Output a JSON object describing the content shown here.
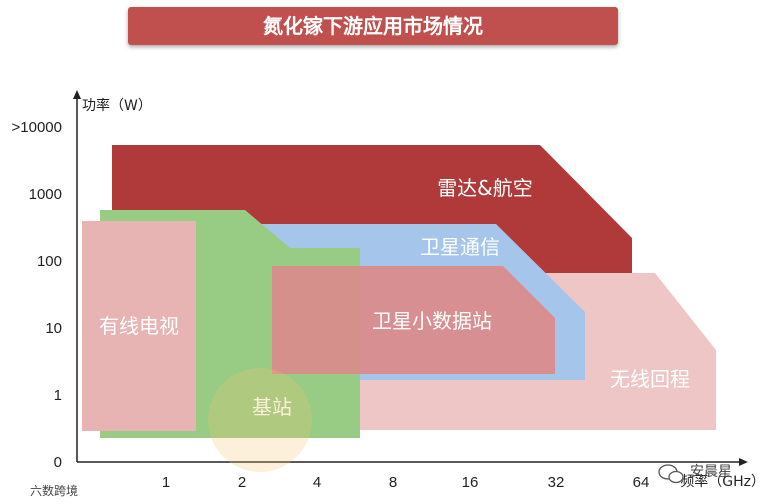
{
  "title": "氮化镓下游应用市场情况",
  "y_axis": {
    "label": "功率（W）",
    "ticks": [
      ">10000",
      "1000",
      "100",
      "10",
      "1",
      "0"
    ]
  },
  "x_axis": {
    "label": "频率（GHz）",
    "ticks": [
      "1",
      "2",
      "4",
      "8",
      "16",
      "32",
      "64"
    ]
  },
  "regions": {
    "radar": "雷达&航空",
    "satellite_comm": "卫星通信",
    "satellite_small": "卫星小数据站",
    "cable_tv": "有线电视",
    "base_station": "基站",
    "wireless_backhaul": "无线回程"
  },
  "colors": {
    "title_bg": "#c0504d",
    "radar": "#b03a3a",
    "satellite_comm": "#a5c5ea",
    "satellite_small": "#d98c8c",
    "cable_tv": "#e8b3b3",
    "base_station": "#98cc84",
    "wireless_backhaul": "#efc6c6"
  },
  "watermarks": {
    "bottom_left": "六数跨境",
    "bottom_right": "安晨星"
  }
}
